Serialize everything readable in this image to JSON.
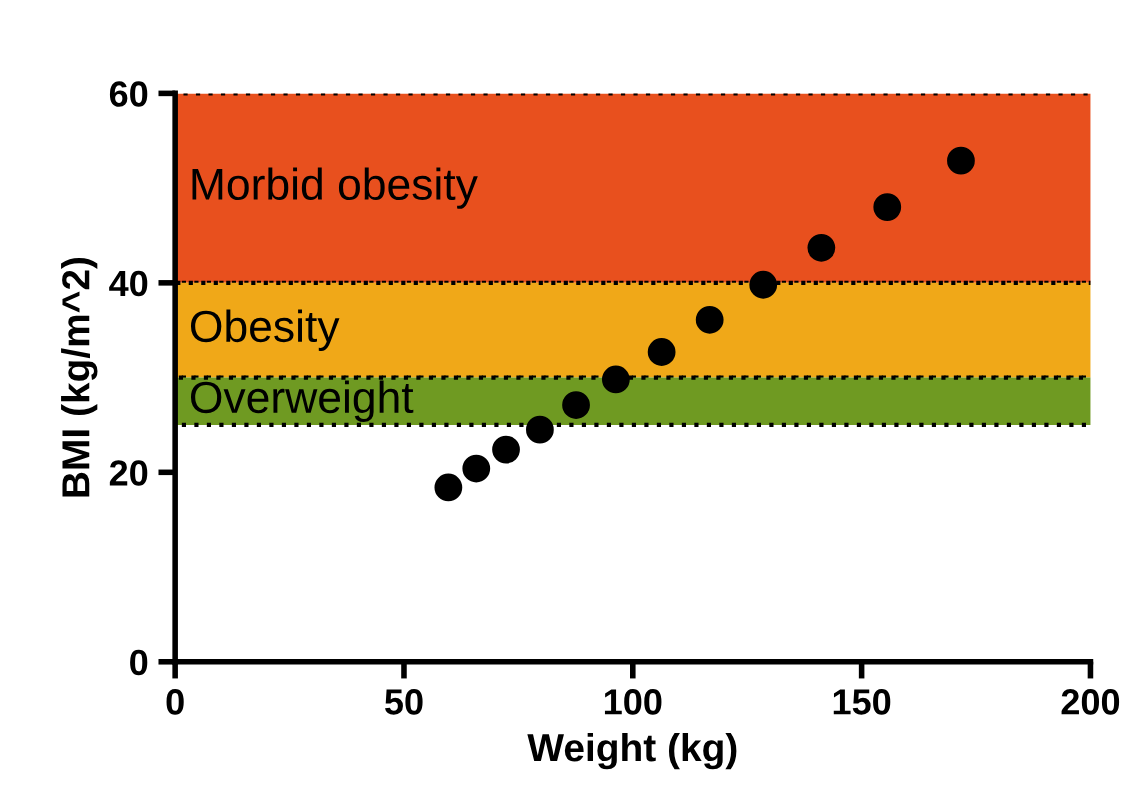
{
  "chart_data": {
    "type": "scatter",
    "xlabel": "Weight (kg)",
    "ylabel": "BMI (kg/m^2)",
    "x": [
      59.7,
      65.8,
      72.3,
      79.7,
      87.6,
      96.3,
      106.3,
      116.8,
      128.5,
      141.2,
      155.6,
      171.7
    ],
    "series": [
      {
        "color": "#000000",
        "values": [
          18.4,
          20.4,
          22.4,
          24.5,
          27.1,
          29.8,
          32.7,
          36.1,
          39.8,
          43.7,
          48.0,
          52.9
        ]
      }
    ],
    "xlim": [
      0,
      200
    ],
    "ylim": [
      0,
      60
    ],
    "xticks": [
      0,
      50,
      100,
      150,
      200
    ],
    "yticks": [
      0,
      20,
      40,
      60
    ],
    "marker": "circle",
    "grid": false,
    "bands": [
      {
        "axis": "y",
        "from": 40,
        "to": 60,
        "label": "Morbid obesity",
        "color": "#e8501e"
      },
      {
        "axis": "y",
        "from": 30,
        "to": 40,
        "label": "Obesity",
        "color": "#f0a818"
      },
      {
        "axis": "y",
        "from": 25,
        "to": 30,
        "label": "Overweight",
        "color": "#6f9a22"
      }
    ]
  }
}
